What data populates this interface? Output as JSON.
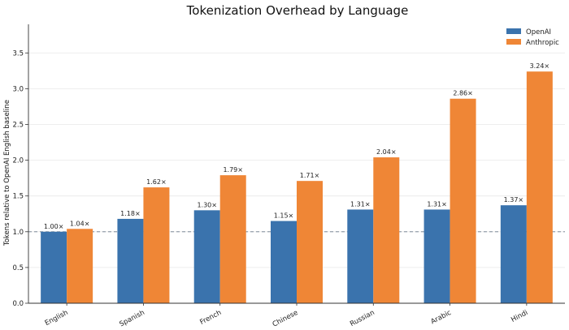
{
  "chart_data": {
    "type": "bar",
    "title": "Tokenization Overhead by Language",
    "xlabel": "",
    "ylabel": "Tokens relative to OpenAI English baseline",
    "categories": [
      "English",
      "Spanish",
      "French",
      "Chinese",
      "Russian",
      "Arabic",
      "Hindi"
    ],
    "series": [
      {
        "name": "OpenAI",
        "color": "#3a73ad",
        "values": [
          1.0,
          1.18,
          1.3,
          1.15,
          1.31,
          1.31,
          1.37
        ],
        "labels": [
          "1.00×",
          "1.18×",
          "1.30×",
          "1.15×",
          "1.31×",
          "1.31×",
          "1.37×"
        ]
      },
      {
        "name": "Anthropic",
        "color": "#ef8636",
        "values": [
          1.04,
          1.62,
          1.79,
          1.71,
          2.04,
          2.86,
          3.24
        ],
        "labels": [
          "1.04×",
          "1.62×",
          "1.79×",
          "1.71×",
          "2.04×",
          "2.86×",
          "3.24×"
        ]
      }
    ],
    "ylim": [
      0,
      3.9
    ],
    "yticks": [
      "0.0",
      "0.5",
      "1.0",
      "1.5",
      "2.0",
      "2.5",
      "3.0",
      "3.5"
    ],
    "reference_line": 1.0,
    "grid": "horizontal",
    "legend": "top-right"
  }
}
